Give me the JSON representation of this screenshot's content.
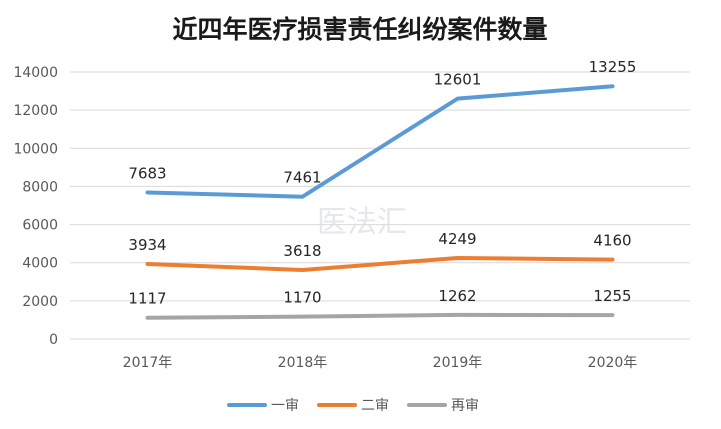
{
  "chart_data": {
    "type": "line",
    "title": "近四年医疗损害责任纠纷案件数量",
    "categories": [
      "2017年",
      "2018年",
      "2019年",
      "2020年"
    ],
    "ylim": [
      0,
      14000
    ],
    "yticks": [
      0,
      2000,
      4000,
      6000,
      8000,
      10000,
      12000,
      14000
    ],
    "grid": true,
    "legend_position": "bottom",
    "series": [
      {
        "name": "一审",
        "values": [
          7683,
          7461,
          12601,
          13255
        ],
        "color": "#5b9bd5"
      },
      {
        "name": "二审",
        "values": [
          3934,
          3618,
          4249,
          4160
        ],
        "color": "#ed7d31"
      },
      {
        "name": "再审",
        "values": [
          1117,
          1170,
          1262,
          1255
        ],
        "color": "#a5a5a5"
      }
    ]
  },
  "watermark": "医法汇"
}
